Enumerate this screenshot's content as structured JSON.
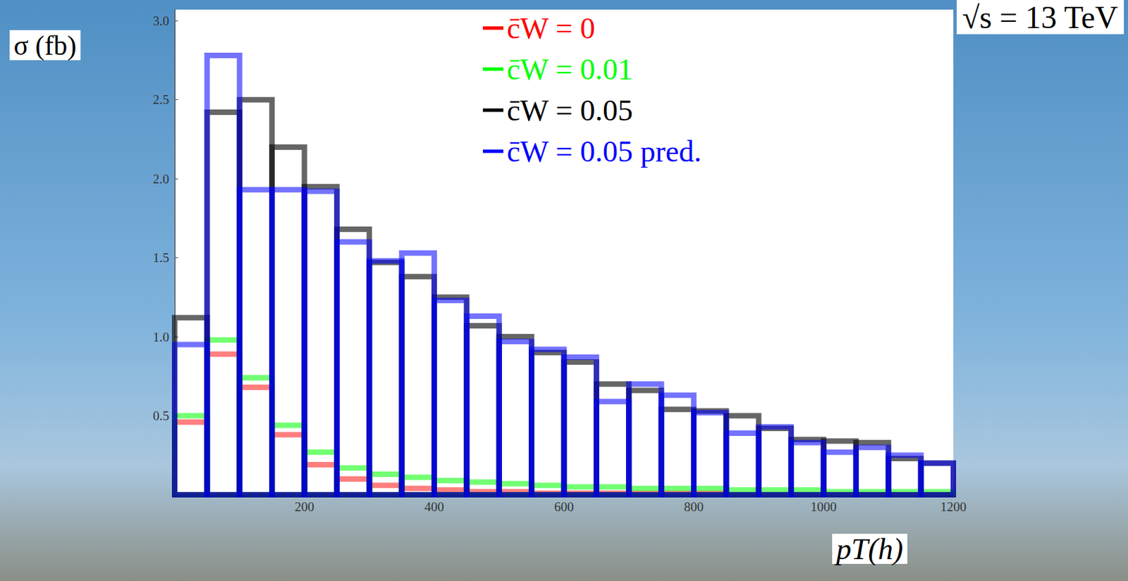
{
  "chart_data": {
    "type": "histogram",
    "title": "√s = 13 TeV",
    "xlabel": "pT(h)",
    "ylabel": "σ (fb)",
    "bins": [
      0,
      50,
      100,
      150,
      200,
      250,
      300,
      350,
      400,
      450,
      500,
      550,
      600,
      650,
      700,
      750,
      800,
      850,
      900,
      950,
      1000,
      1050,
      1100,
      1150,
      1200
    ],
    "series": [
      {
        "name": "c̄W = 0",
        "color": "#ff0000",
        "values": [
          0.46,
          0.89,
          0.68,
          0.38,
          0.19,
          0.1,
          0.06,
          0.04,
          0.03,
          0.02,
          0.02,
          0.01,
          0.01,
          0.01,
          0.01,
          0.01,
          0.01,
          0,
          0,
          0,
          0,
          0,
          0,
          0
        ]
      },
      {
        "name": "c̄W = 0.01",
        "color": "#00ff00",
        "values": [
          0.5,
          0.98,
          0.74,
          0.44,
          0.27,
          0.17,
          0.13,
          0.11,
          0.09,
          0.08,
          0.07,
          0.06,
          0.05,
          0.05,
          0.04,
          0.04,
          0.04,
          0.03,
          0.03,
          0.03,
          0.02,
          0.02,
          0.02,
          0.02
        ]
      },
      {
        "name": "c̄W = 0.05",
        "color": "#000000",
        "values": [
          1.12,
          2.42,
          2.5,
          2.2,
          1.95,
          1.68,
          1.47,
          1.38,
          1.25,
          1.07,
          1.0,
          0.9,
          0.84,
          0.7,
          0.66,
          0.54,
          0.53,
          0.5,
          0.42,
          0.35,
          0.34,
          0.33,
          0.23,
          0.2
        ]
      },
      {
        "name": "c̄W = 0.05 pred.",
        "color": "#0000ff",
        "values": [
          0.95,
          2.78,
          1.93,
          1.93,
          1.92,
          1.6,
          1.48,
          1.53,
          1.23,
          1.13,
          0.97,
          0.92,
          0.87,
          0.59,
          0.7,
          0.63,
          0.52,
          0.39,
          0.43,
          0.33,
          0.27,
          0.3,
          0.25,
          0.2
        ]
      }
    ],
    "xlim": [
      0,
      1200
    ],
    "xticks": [
      200,
      400,
      600,
      800,
      1000,
      1200
    ],
    "ylim": [
      0,
      3.07
    ],
    "yticks": [
      0.5,
      {
        "value": 1.0,
        "label": "1.0"
      },
      1.5,
      {
        "value": 2.0,
        "label": "2.0"
      },
      2.5,
      {
        "value": 3.0,
        "label": "3.0"
      }
    ],
    "legend": "top-right",
    "grid": false
  }
}
